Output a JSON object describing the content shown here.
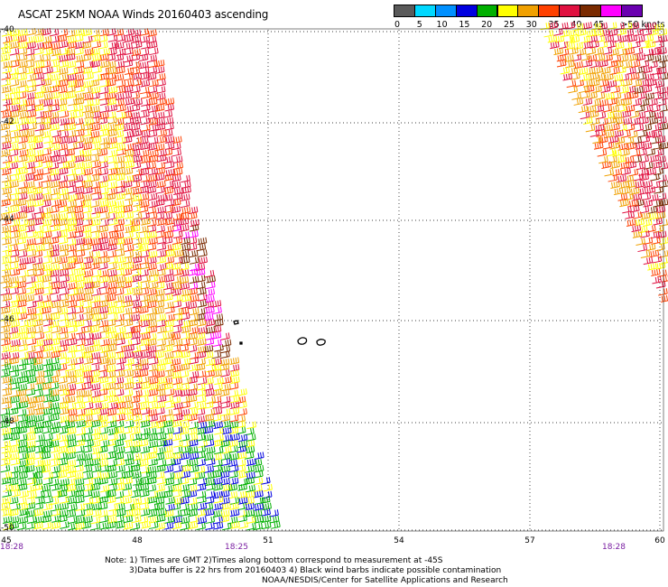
{
  "title": "ASCAT 25KM NOAA Winds 20160403 ascending",
  "legend": {
    "colors": [
      "#5a5a5a",
      "#00d8ff",
      "#0090ff",
      "#0000e0",
      "#00b000",
      "#ffff00",
      "#f0a000",
      "#ff4000",
      "#e01040",
      "#7a2a00",
      "#ff00ff",
      "#6a00b0"
    ],
    "labels": [
      "0",
      "5",
      "10",
      "15",
      "20",
      "25",
      "30",
      "35",
      "40",
      "45"
    ],
    "max_label": ">50 knots"
  },
  "axes": {
    "latitudes": [
      "-40",
      "-42",
      "-44",
      "-46",
      "-48",
      "-50"
    ],
    "longitudes": [
      "45",
      "48",
      "51",
      "54",
      "57",
      "60"
    ],
    "time_labels": [
      "18:28",
      "18:25",
      "18:28"
    ]
  },
  "notes": {
    "line1": "Note: 1) Times are GMT 2)Times along bottom correspond to measurement at -45S",
    "line2": "3)Data buffer is 22 hrs from 20160403 4) Black wind barbs indicate possible contamination",
    "line3": "NOAA/NESDIS/Center for Satellite Applications and Research"
  }
}
